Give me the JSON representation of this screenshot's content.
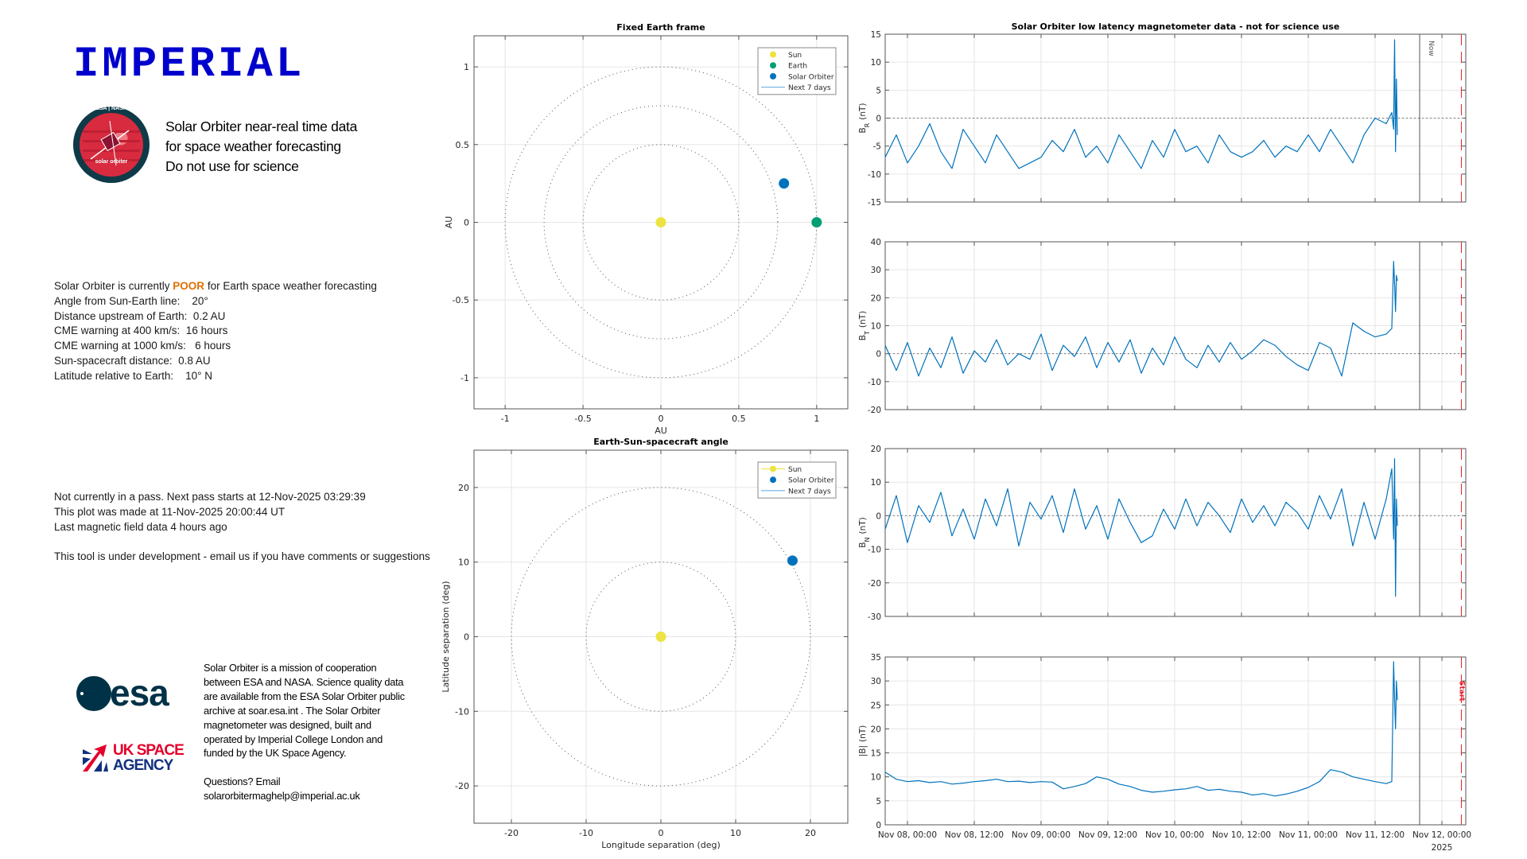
{
  "header": {
    "logo_text": "IMPERIAL",
    "mission_logo_text": [
      "ESA | NASA",
      "solar orbiter"
    ],
    "tagline": [
      "Solar Orbiter near-real time data",
      "for space weather forecasting",
      "Do not use for science"
    ]
  },
  "status": {
    "line1_prefix": "Solar Orbiter is currently ",
    "rating": "POOR",
    "line1_suffix": " for Earth space weather forecasting",
    "rating_color": "#e07000",
    "lines": [
      "Angle from Sun-Earth line:    20°",
      "Distance upstream of Earth:  0.2 AU",
      "CME warning at 400 km/s:  16 hours",
      "CME warning at 1000 km/s:   6 hours",
      "Sun-spacecraft distance:  0.8 AU",
      "Latitude relative to Earth:    10° N"
    ]
  },
  "pass_info": [
    "Not currently in a pass. Next pass starts at 12-Nov-2025 03:29:39",
    "This plot was made at 11-Nov-2025 20:00:44 UT",
    "Last magnetic field data 4 hours ago"
  ],
  "dev_note": "This tool is under development - email us if you have comments or suggestions",
  "footer": {
    "esa_logo_text": "esa",
    "uksa_logo_text": [
      "UK SPACE",
      "AGENCY"
    ],
    "mission_text": "Solar Orbiter is a mission of cooperation between ESA and NASA. Science quality data are available from the ESA Solar Orbiter public archive at soar.esa.int . The Solar Orbiter magnetometer was designed, built and operated by Imperial College London and funded by the UK Space Agency.",
    "questions": "Questions? Email",
    "email": "solarorbitermaghelp@imperial.ac.uk"
  },
  "chart_data": [
    {
      "type": "scatter",
      "title": "Fixed Earth frame",
      "xlabel": "AU",
      "ylabel": "AU",
      "xlim": [
        -1.2,
        1.2
      ],
      "ylim": [
        -1.2,
        1.2
      ],
      "xticks": [
        -1,
        -0.5,
        0,
        0.5,
        1
      ],
      "yticks": [
        -1,
        -0.5,
        0,
        0.5,
        1
      ],
      "xtick_labels": [
        "-1",
        "-0.5",
        "0",
        "0.5",
        "1"
      ],
      "ytick_labels": [
        "-1",
        "-0.5",
        "0",
        "0.5",
        "1"
      ],
      "grid": true,
      "reference_circles": [
        0.5,
        0.75,
        1
      ],
      "points": [
        {
          "name": "Sun",
          "x": 0,
          "y": 0,
          "color": "#ede342"
        },
        {
          "name": "Earth",
          "x": 1,
          "y": 0,
          "color": "#009e73"
        },
        {
          "name": "Solar Orbiter",
          "x": 0.79,
          "y": 0.25,
          "color": "#0072bd"
        }
      ],
      "legend": [
        {
          "label": "Sun",
          "kind": "dot",
          "color": "#ede342"
        },
        {
          "label": "Earth",
          "kind": "dot",
          "color": "#009e73"
        },
        {
          "label": "Solar Orbiter",
          "kind": "dot",
          "color": "#0072bd"
        },
        {
          "label": "Next 7 days",
          "kind": "line",
          "color": "#5aa9e0"
        }
      ],
      "legend_position": "top-right"
    },
    {
      "type": "scatter",
      "title": "Earth-Sun-spacecraft angle",
      "xlabel": "Longitude separation (deg)",
      "ylabel": "Latitude separation (deg)",
      "xlim": [
        -25,
        25
      ],
      "ylim": [
        -25,
        25
      ],
      "xticks": [
        -20,
        -10,
        0,
        10,
        20
      ],
      "yticks": [
        -20,
        -10,
        0,
        10,
        20
      ],
      "xtick_labels": [
        "-20",
        "-10",
        "0",
        "10",
        "20"
      ],
      "ytick_labels": [
        "-20",
        "-10",
        "0",
        "10",
        "20"
      ],
      "grid": true,
      "reference_circles": [
        10,
        20
      ],
      "points": [
        {
          "name": "Sun",
          "x": 0,
          "y": 0,
          "color": "#ede342"
        },
        {
          "name": "Solar Orbiter",
          "x": 17.6,
          "y": 10.2,
          "color": "#0072bd"
        }
      ],
      "legend": [
        {
          "label": "Sun",
          "kind": "dotline",
          "color": "#ede342"
        },
        {
          "label": "Solar Orbiter",
          "kind": "dot",
          "color": "#0072bd"
        },
        {
          "label": "Next 7 days",
          "kind": "line",
          "color": "#5aa9e0"
        }
      ],
      "legend_position": "top-right"
    },
    {
      "type": "line",
      "title": "Solar Orbiter low latency magnetometer data - not for science use",
      "xlim": [
        "2025-11-07T20:00",
        "2025-11-12T04:17"
      ],
      "xticks": [
        "2025-11-08T00:00",
        "2025-11-08T12:00",
        "2025-11-09T00:00",
        "2025-11-09T12:00",
        "2025-11-10T00:00",
        "2025-11-10T12:00",
        "2025-11-11T00:00",
        "2025-11-11T12:00",
        "2025-11-12T00:00"
      ],
      "xtick_labels": [
        "Nov 08, 00:00",
        "Nov 08, 12:00",
        "Nov 09, 00:00",
        "Nov 09, 12:00",
        "Nov 10, 00:00",
        "Nov 10, 12:00",
        "Nov 11, 00:00",
        "Nov 11, 12:00",
        "Nov 12, 00:00"
      ],
      "x_year_label": "2025",
      "grid": true,
      "series_color": "#0072bd",
      "sample_start": "2025-11-07T20:00",
      "sample_step_hours": 2,
      "tail_times": [
        "2025-11-11T15:00",
        "2025-11-11T15:20",
        "2025-11-11T15:30",
        "2025-11-11T15:40",
        "2025-11-11T15:50",
        "2025-11-11T16:00"
      ],
      "markers": [
        {
          "label": "Now",
          "time": "2025-11-11T20:00",
          "color": "#555555",
          "style": "solid",
          "panel": 0
        },
        {
          "label": "Start",
          "time": "2025-11-12T03:29:39",
          "color": "#e8202a",
          "style": "dashed",
          "panel": 3
        }
      ],
      "panels": [
        {
          "symbol": "B",
          "sub": "R",
          "unit": "(nT)",
          "ylim": [
            -15,
            15
          ],
          "yticks": [
            -15,
            -10,
            -5,
            0,
            5,
            10,
            15
          ],
          "zero_line": true,
          "values": [
            -7,
            -3,
            -8,
            -5,
            -1,
            -6,
            -9,
            -2,
            -5,
            -8,
            -3,
            -6,
            -9,
            -8,
            -7,
            -4,
            -6,
            -2,
            -7,
            -5,
            -8,
            -3,
            -6,
            -9,
            -4,
            -7,
            -2,
            -6,
            -5,
            -8,
            -3,
            -6,
            -7,
            -6,
            -4,
            -7,
            -5,
            -6,
            -3,
            -6,
            -2,
            -5,
            -8,
            -3,
            0,
            -1
          ],
          "tail": [
            1,
            -2,
            14,
            -6,
            7,
            -3
          ]
        },
        {
          "symbol": "B",
          "sub": "T",
          "unit": "(nT)",
          "ylim": [
            -20,
            40
          ],
          "yticks": [
            -20,
            -10,
            0,
            10,
            20,
            30,
            40
          ],
          "zero_line": true,
          "values": [
            3,
            -6,
            4,
            -8,
            2,
            -5,
            6,
            -7,
            1,
            -3,
            5,
            -4,
            0,
            -2,
            7,
            -6,
            3,
            -1,
            6,
            -5,
            4,
            -3,
            5,
            -7,
            2,
            -4,
            6,
            -2,
            -5,
            3,
            -3,
            4,
            -2,
            1,
            5,
            3,
            -1,
            -4,
            -6,
            4,
            2,
            -8,
            11,
            8,
            6,
            7
          ],
          "tail": [
            9,
            33,
            25,
            15,
            28,
            26
          ]
        },
        {
          "symbol": "B",
          "sub": "N",
          "unit": "(nT)",
          "ylim": [
            -30,
            20
          ],
          "yticks": [
            -30,
            -20,
            -10,
            0,
            10,
            20
          ],
          "zero_line": true,
          "values": [
            -4,
            6,
            -8,
            3,
            -2,
            7,
            -6,
            2,
            -7,
            5,
            -3,
            8,
            -9,
            4,
            -1,
            6,
            -5,
            8,
            -4,
            3,
            -7,
            5,
            -2,
            -8,
            -6,
            2,
            -4,
            5,
            -3,
            4,
            0,
            -5,
            5,
            -2,
            3,
            -3,
            4,
            1,
            -4,
            6,
            -1,
            8,
            -9,
            4,
            -7,
            5
          ],
          "tail": [
            14,
            -7,
            17,
            -24,
            5,
            -3
          ]
        },
        {
          "symbol": "|B|",
          "sub": "",
          "unit": "(nT)",
          "ylim": [
            0,
            35
          ],
          "yticks": [
            0,
            5,
            10,
            15,
            20,
            25,
            30,
            35
          ],
          "zero_line": false,
          "values": [
            11,
            9.5,
            9,
            9.2,
            8.8,
            9,
            8.5,
            8.7,
            9,
            9.2,
            9.5,
            9,
            9.1,
            8.8,
            9,
            8.9,
            7.5,
            8,
            8.6,
            10,
            9.5,
            8.5,
            8,
            7.2,
            6.8,
            7,
            7.3,
            7.5,
            8,
            7.2,
            7.4,
            7,
            6.8,
            6.2,
            6.5,
            6,
            6.4,
            7,
            7.8,
            9,
            11.5,
            11,
            10,
            9.5,
            9,
            8.6
          ],
          "tail": [
            9,
            34,
            26,
            20,
            30,
            26
          ]
        }
      ]
    }
  ]
}
